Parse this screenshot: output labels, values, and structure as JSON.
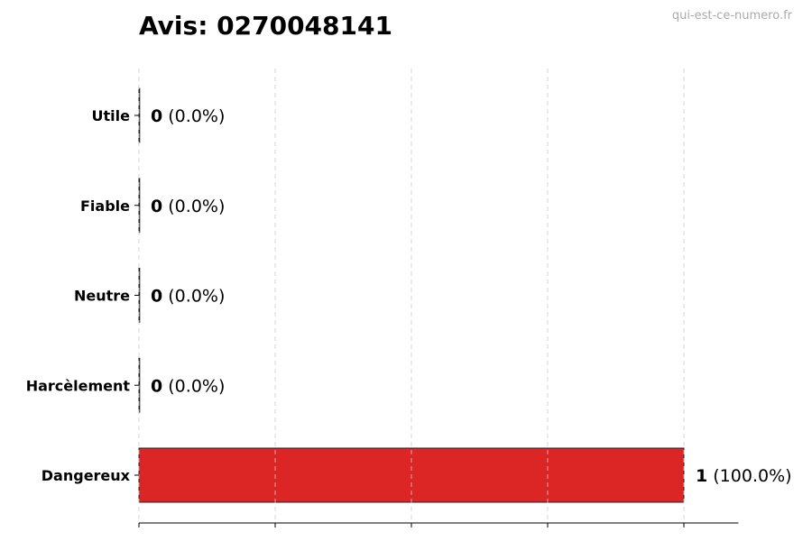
{
  "title": "Avis: 0270048141",
  "watermark": "qui-est-ce-numero.fr",
  "chart_data": {
    "type": "bar",
    "orientation": "horizontal",
    "title": "Avis: 0270048141",
    "categories": [
      "Utile",
      "Fiable",
      "Neutre",
      "Harcèlement",
      "Dangereux"
    ],
    "values": [
      0,
      0,
      0,
      0,
      1
    ],
    "labels": [
      {
        "count": "0",
        "pct": "(0.0%)"
      },
      {
        "count": "0",
        "pct": "(0.0%)"
      },
      {
        "count": "0",
        "pct": "(0.0%)"
      },
      {
        "count": "0",
        "pct": "(0.0%)"
      },
      {
        "count": "1",
        "pct": "(100.0%)"
      }
    ],
    "colors": [
      "#2ca02c",
      "#1f77b4",
      "#7f7f7f",
      "#ff7f0e",
      "#dc2626"
    ],
    "xlim": [
      0,
      1.1
    ],
    "xticks": [
      0,
      0.25,
      0.5,
      0.75,
      1
    ],
    "grid": "vertical dashed",
    "xlabel": "",
    "ylabel": ""
  }
}
